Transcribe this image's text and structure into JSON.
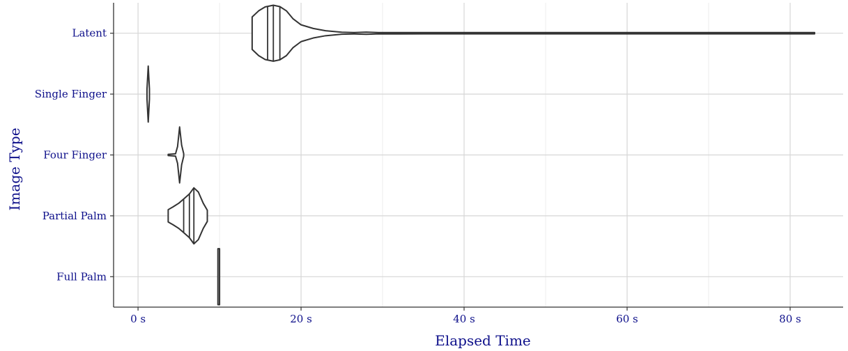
{
  "chart_data": {
    "type": "violin",
    "orientation": "horizontal",
    "xlabel": "Elapsed Time",
    "ylabel": "Image Type",
    "xlim": [
      -3,
      86.5
    ],
    "x_ticks": [
      0,
      20,
      40,
      60,
      80
    ],
    "x_tick_labels": [
      "0 s",
      "20 s",
      "40 s",
      "60 s",
      "80 s"
    ],
    "x_minor_ticks": [
      10,
      30,
      50,
      70
    ],
    "categories": [
      "Latent",
      "Single Finger",
      "Four Finger",
      "Partial Palm",
      "Full Palm"
    ],
    "grid": true,
    "series": [
      {
        "category": "Latent",
        "min": 14.0,
        "max": 83.0,
        "quartiles": [
          15.9,
          16.6,
          17.4
        ],
        "density": [
          [
            14.0,
            0.58
          ],
          [
            14.8,
            0.8
          ],
          [
            15.6,
            0.94
          ],
          [
            16.6,
            1.0
          ],
          [
            17.4,
            0.95
          ],
          [
            18.2,
            0.8
          ],
          [
            19.0,
            0.52
          ],
          [
            20.0,
            0.3
          ],
          [
            21.5,
            0.17
          ],
          [
            23.0,
            0.09
          ],
          [
            25.0,
            0.035
          ],
          [
            26.5,
            0.025
          ],
          [
            28.0,
            0.04
          ],
          [
            29.5,
            0.02
          ],
          [
            32.0,
            0.025
          ],
          [
            35.0,
            0.01
          ],
          [
            40.0,
            0.02
          ],
          [
            45.0,
            0.01
          ],
          [
            52.0,
            0.02
          ],
          [
            60.0,
            0.008
          ],
          [
            70.0,
            0.006
          ],
          [
            83.0,
            0.0
          ]
        ]
      },
      {
        "category": "Single Finger",
        "min": 1.1,
        "max": 1.4,
        "quartiles": [],
        "density": [
          [
            1.1,
            0.18
          ],
          [
            1.25,
            1.0
          ],
          [
            1.4,
            0.18
          ]
        ]
      },
      {
        "category": "Four Finger",
        "min": 3.7,
        "max": 5.6,
        "quartiles": [],
        "density": [
          [
            3.7,
            0.02
          ],
          [
            4.6,
            0.04
          ],
          [
            4.85,
            0.3
          ],
          [
            5.1,
            1.0
          ],
          [
            5.35,
            0.35
          ],
          [
            5.6,
            0.05
          ]
        ]
      },
      {
        "category": "Partial Palm",
        "min": 3.7,
        "max": 8.5,
        "quartiles": [
          5.6,
          6.3,
          6.85
        ],
        "density": [
          [
            3.7,
            0.22
          ],
          [
            4.3,
            0.32
          ],
          [
            5.0,
            0.45
          ],
          [
            5.6,
            0.6
          ],
          [
            6.3,
            0.78
          ],
          [
            6.85,
            1.0
          ],
          [
            7.4,
            0.85
          ],
          [
            8.0,
            0.45
          ],
          [
            8.5,
            0.2
          ]
        ]
      },
      {
        "category": "Full Palm",
        "min": 9.8,
        "max": 10.0,
        "quartiles": [],
        "density": [
          [
            9.8,
            1.0
          ],
          [
            10.0,
            1.0
          ]
        ]
      }
    ]
  }
}
